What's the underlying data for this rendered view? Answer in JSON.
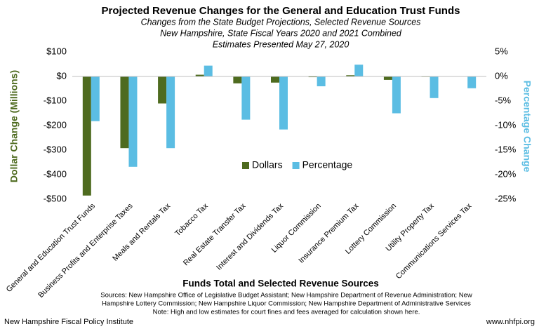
{
  "chart_data": {
    "type": "bar",
    "title": "Projected Revenue Changes for the General and Education Trust Funds",
    "subtitle": [
      "Changes from the State Budget Projections, Selected Revenue Sources",
      "New Hampshire, State Fiscal Years 2020 and 2021 Combined",
      "Estimates Presented May 27, 2020"
    ],
    "x_label": "Funds Total and Selected Revenue Sources",
    "y_label": "Dollar Change (Millions)",
    "y2_label": "Percentage Change",
    "categories": [
      "General and Education Trust Funds",
      "Business Profits and Enterprise Taxes",
      "Meals and Rentals Tax",
      "Tobacco Tax",
      "Real Estate Transfer Tax",
      "Interest and Dividends Tax",
      "Liquor Commission",
      "Insurance Premium Tax",
      "Lottery Commission",
      "Utility Property Tax",
      "Communications Services Tax"
    ],
    "series": [
      {
        "name": "Dollars",
        "color": "#4e6b1f",
        "values": [
          -485,
          -292,
          -110,
          7,
          -28,
          -25,
          -3,
          5,
          -14,
          -2,
          -1
        ]
      },
      {
        "name": "Percentage",
        "color": "#5bbde3",
        "axis": "y2",
        "values": [
          -9.1,
          -18.4,
          -14.6,
          2.2,
          -8.8,
          -10.8,
          -2.0,
          2.4,
          -7.5,
          -4.4,
          -2.4
        ]
      }
    ],
    "ylim": [
      -500,
      100
    ],
    "yticks": [
      {
        "value": 100,
        "label": "$100"
      },
      {
        "value": 0,
        "label": "$0"
      },
      {
        "value": -100,
        "label": "-$100"
      },
      {
        "value": -200,
        "label": "-$200"
      },
      {
        "value": -300,
        "label": "-$300"
      },
      {
        "value": -400,
        "label": "-$400"
      },
      {
        "value": -500,
        "label": "-$500"
      }
    ],
    "y2lim": [
      -25,
      5
    ],
    "y2ticks": [
      {
        "value": 5,
        "label": "5%"
      },
      {
        "value": 0,
        "label": "0%"
      },
      {
        "value": -5,
        "label": "-5%"
      },
      {
        "value": -10,
        "label": "-10%"
      },
      {
        "value": -15,
        "label": "-15%"
      },
      {
        "value": -20,
        "label": "-20%"
      },
      {
        "value": -25,
        "label": "-25%"
      }
    ],
    "notes": [
      "Sources: New Hampshire Office of Legislative Budget Assistant; New Hampshire Department of Revenue Administration; New",
      "Hampshire Lottery Commission; New Hampshire Liquor Commission; New Hampshire Department of Administrative Services",
      "Note: High and low estimates for court fines and fees averaged for calculation shown here."
    ],
    "footer_left": "New Hampshire Fiscal Policy Institute",
    "footer_right": "www.nhfpi.org",
    "grid": false,
    "legend": "center"
  }
}
